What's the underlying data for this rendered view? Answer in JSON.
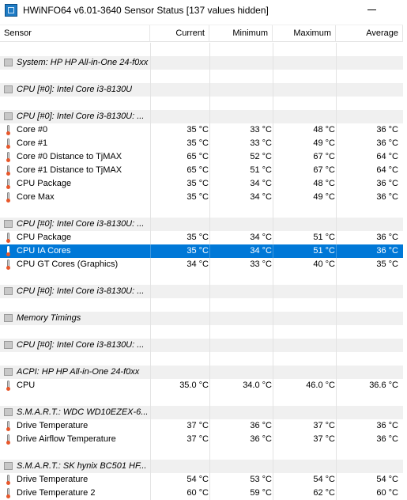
{
  "window": {
    "title": "HWiNFO64 v6.01-3640 Sensor Status [137 values hidden]"
  },
  "columns": {
    "sensor": "Sensor",
    "current": "Current",
    "minimum": "Minimum",
    "maximum": "Maximum",
    "average": "Average"
  },
  "rows": [
    {
      "type": "spacer"
    },
    {
      "type": "group",
      "name": "System: HP HP All-in-One 24-f0xx",
      "icon": "sensor-chip-icon"
    },
    {
      "type": "spacer"
    },
    {
      "type": "group",
      "name": "CPU [#0]: Intel Core i3-8130U",
      "icon": "sensor-chip-icon"
    },
    {
      "type": "spacer"
    },
    {
      "type": "group",
      "name": "CPU [#0]: Intel Core i3-8130U: ...",
      "icon": "sensor-chip-icon"
    },
    {
      "type": "sensor",
      "name": "Core #0",
      "current": "35 °C",
      "minimum": "33 °C",
      "maximum": "48 °C",
      "average": "36 °C",
      "icon": "thermometer-icon"
    },
    {
      "type": "sensor",
      "name": "Core #1",
      "current": "35 °C",
      "minimum": "33 °C",
      "maximum": "49 °C",
      "average": "36 °C",
      "icon": "thermometer-icon"
    },
    {
      "type": "sensor",
      "name": "Core #0 Distance to TjMAX",
      "current": "65 °C",
      "minimum": "52 °C",
      "maximum": "67 °C",
      "average": "64 °C",
      "icon": "thermometer-icon"
    },
    {
      "type": "sensor",
      "name": "Core #1 Distance to TjMAX",
      "current": "65 °C",
      "minimum": "51 °C",
      "maximum": "67 °C",
      "average": "64 °C",
      "icon": "thermometer-icon"
    },
    {
      "type": "sensor",
      "name": "CPU Package",
      "current": "35 °C",
      "minimum": "34 °C",
      "maximum": "48 °C",
      "average": "36 °C",
      "icon": "thermometer-icon"
    },
    {
      "type": "sensor",
      "name": "Core Max",
      "current": "35 °C",
      "minimum": "34 °C",
      "maximum": "49 °C",
      "average": "36 °C",
      "icon": "thermometer-icon"
    },
    {
      "type": "spacer"
    },
    {
      "type": "group",
      "name": "CPU [#0]: Intel Core i3-8130U: ...",
      "icon": "sensor-chip-icon"
    },
    {
      "type": "sensor",
      "name": "CPU Package",
      "current": "35 °C",
      "minimum": "34 °C",
      "maximum": "51 °C",
      "average": "36 °C",
      "icon": "thermometer-icon"
    },
    {
      "type": "sensor",
      "name": "CPU IA Cores",
      "current": "35 °C",
      "minimum": "34 °C",
      "maximum": "51 °C",
      "average": "36 °C",
      "icon": "thermometer-icon",
      "selected": true
    },
    {
      "type": "sensor",
      "name": "CPU GT Cores (Graphics)",
      "current": "34 °C",
      "minimum": "33 °C",
      "maximum": "40 °C",
      "average": "35 °C",
      "icon": "thermometer-icon"
    },
    {
      "type": "spacer"
    },
    {
      "type": "group",
      "name": "CPU [#0]: Intel Core i3-8130U: ...",
      "icon": "sensor-chip-icon"
    },
    {
      "type": "spacer"
    },
    {
      "type": "group",
      "name": "Memory Timings",
      "icon": "sensor-chip-icon"
    },
    {
      "type": "spacer"
    },
    {
      "type": "group",
      "name": "CPU [#0]: Intel Core i3-8130U: ...",
      "icon": "sensor-chip-icon"
    },
    {
      "type": "spacer"
    },
    {
      "type": "group",
      "name": "ACPI: HP HP All-in-One 24-f0xx",
      "icon": "sensor-chip-icon"
    },
    {
      "type": "sensor",
      "name": "CPU",
      "current": "35.0 °C",
      "minimum": "34.0 °C",
      "maximum": "46.0 °C",
      "average": "36.6 °C",
      "icon": "thermometer-icon"
    },
    {
      "type": "spacer"
    },
    {
      "type": "group",
      "name": "S.M.A.R.T.: WDC WD10EZEX-6...",
      "icon": "sensor-chip-icon"
    },
    {
      "type": "sensor",
      "name": "Drive Temperature",
      "current": "37 °C",
      "minimum": "36 °C",
      "maximum": "37 °C",
      "average": "36 °C",
      "icon": "thermometer-icon"
    },
    {
      "type": "sensor",
      "name": "Drive Airflow Temperature",
      "current": "37 °C",
      "minimum": "36 °C",
      "maximum": "37 °C",
      "average": "36 °C",
      "icon": "thermometer-icon"
    },
    {
      "type": "spacer"
    },
    {
      "type": "group",
      "name": "S.M.A.R.T.: SK hynix BC501 HF...",
      "icon": "sensor-chip-icon"
    },
    {
      "type": "sensor",
      "name": "Drive Temperature",
      "current": "54 °C",
      "minimum": "53 °C",
      "maximum": "54 °C",
      "average": "54 °C",
      "icon": "thermometer-icon"
    },
    {
      "type": "sensor",
      "name": "Drive Temperature 2",
      "current": "60 °C",
      "minimum": "59 °C",
      "maximum": "62 °C",
      "average": "60 °C",
      "icon": "thermometer-icon"
    }
  ]
}
